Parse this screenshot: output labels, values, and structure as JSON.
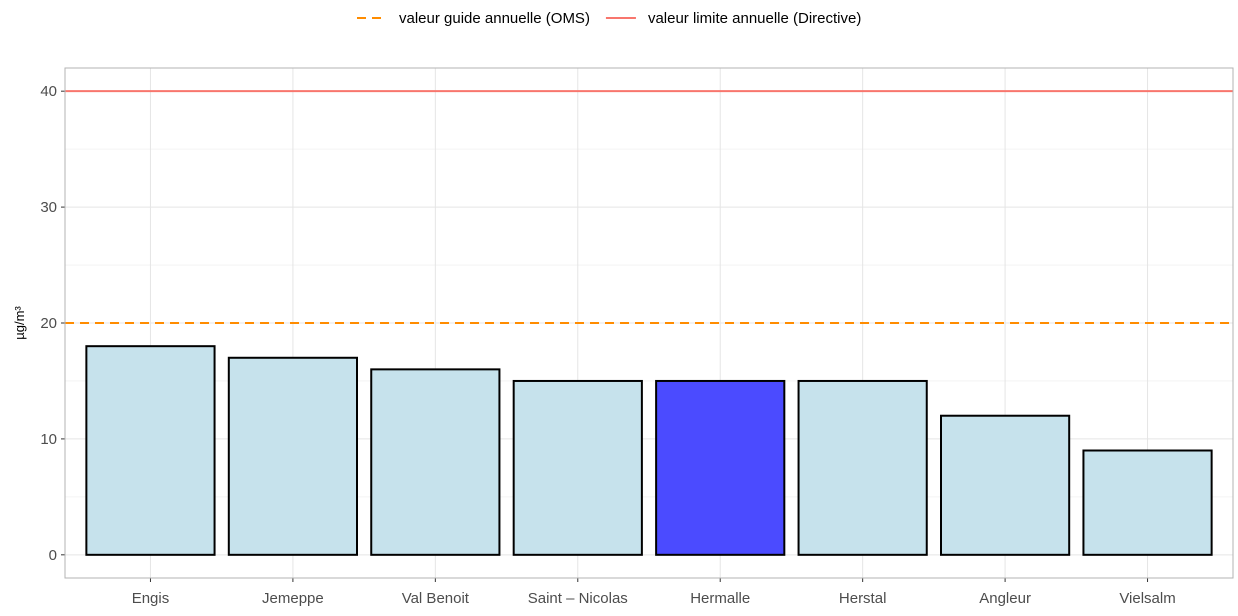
{
  "chart_data": {
    "type": "bar",
    "title": "",
    "xlabel": "",
    "ylabel": "µg/m³",
    "ylim": [
      -2,
      42
    ],
    "yticks": [
      0,
      10,
      20,
      30,
      40
    ],
    "grid": true,
    "legend_position": "top",
    "categories": [
      "Engis",
      "Jemeppe",
      "Val Benoit",
      "Saint – Nicolas",
      "Hermalle",
      "Herstal",
      "Angleur",
      "Vielsalm"
    ],
    "values": [
      18,
      17,
      16,
      15,
      15,
      15,
      12,
      9
    ],
    "highlight_category": "Hermalle",
    "colors": {
      "bar_fill": "#c6e2ec",
      "highlight_fill": "#4b4bff",
      "bar_stroke": "#000000",
      "guide_line": "#ff8c00",
      "limit_line": "#f8766d",
      "grid": "#e5e5e5",
      "panel_border": "#b3b3b3"
    },
    "reference_lines": [
      {
        "name": "valeur guide annuelle (OMS)",
        "value": 20,
        "style": "dashed",
        "color": "#ff8c00"
      },
      {
        "name": "valeur limite annuelle (Directive)",
        "value": 40,
        "style": "solid",
        "color": "#f8766d"
      }
    ]
  }
}
